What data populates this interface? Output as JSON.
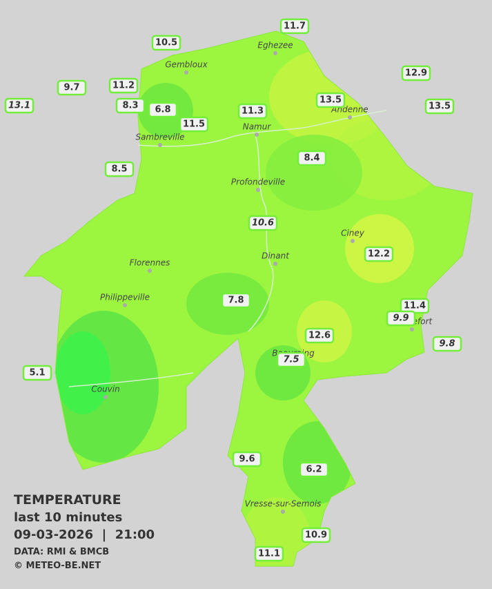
{
  "legend": {
    "title": "TEMPERATURE",
    "period": "last 10 minutes",
    "datetime": "09-03-2026  |  21:00",
    "source": "DATA: RMI & BMCB",
    "copyright": "© METEO-BE.NET"
  },
  "cities": [
    "Eghezee",
    "Gembloux",
    "Andenne",
    "Namur",
    "Sambreville",
    "Profondeville",
    "Ciney",
    "Florennes",
    "Dinant",
    "Philippeville",
    "Rochefort",
    "Beauraing",
    "Couvin",
    "Vresse-sur-Semois"
  ],
  "stations": [
    "10.5",
    "11.7",
    "12.9",
    "9.7",
    "11.2",
    "13.1",
    "8.3",
    "6.8",
    "11.3",
    "13.5",
    "13.5",
    "11.5",
    "8.5",
    "8.4",
    "10.6",
    "12.2",
    "7.8",
    "11.4",
    "9.9",
    "9.8",
    "12.6",
    "5.1",
    "7.5",
    "9.6",
    "6.2",
    "10.9",
    "11.1"
  ]
}
